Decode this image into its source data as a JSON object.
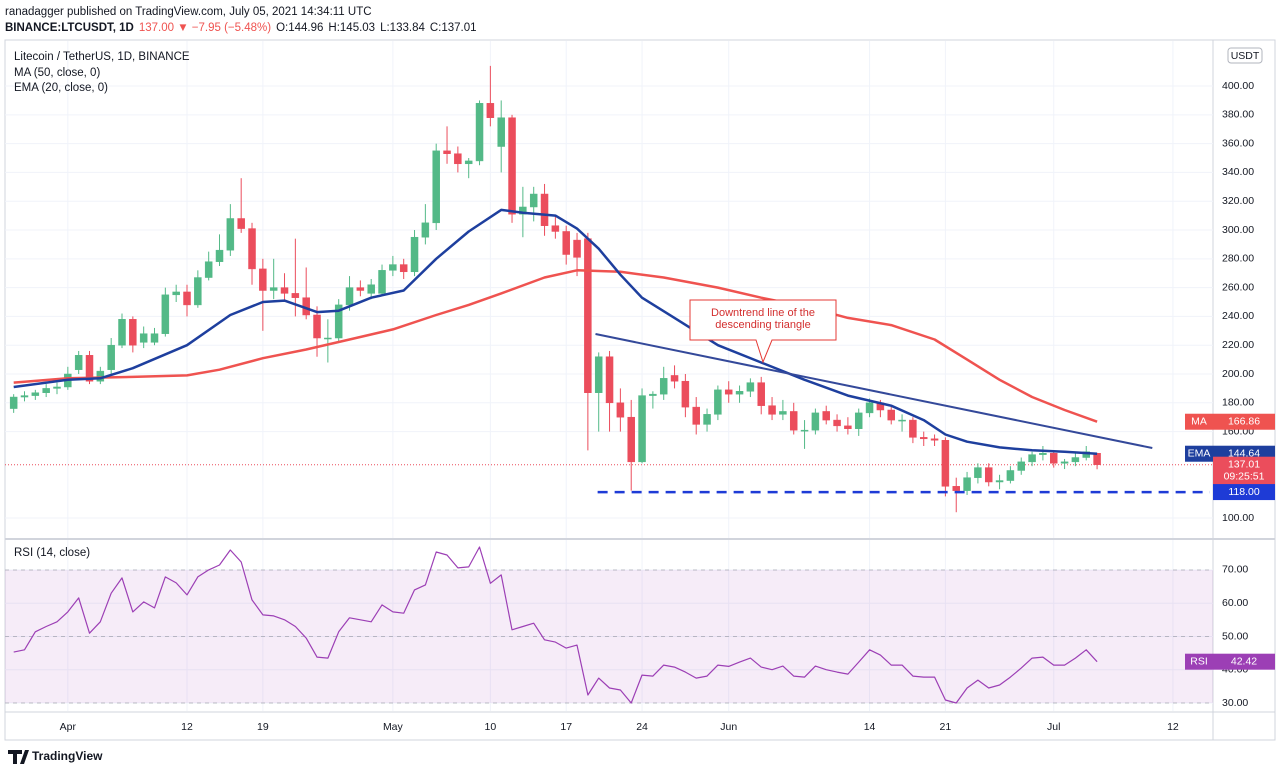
{
  "header": {
    "line1": "ranadagger published on TradingView.com, July 05, 2021 14:34:11 UTC",
    "symbol": "BINANCE:LTCUSDT, 1D",
    "change": "137.00 ▼ −7.95 (−5.48%)",
    "ohlc": [
      "O:144.96",
      "H:145.03",
      "L:133.84",
      "C:137.01"
    ]
  },
  "chart_data": [
    {
      "type": "candlestick",
      "title": "Litecoin / TetherUS, 1D, BINANCE",
      "currency": "USDT",
      "x": [
        -5,
        -4,
        -3,
        -2,
        -1,
        0,
        1,
        2,
        3,
        4,
        5,
        6,
        7,
        8,
        9,
        10,
        11,
        12,
        13,
        14,
        15,
        16,
        17,
        18,
        19,
        20,
        21,
        22,
        23,
        24,
        25,
        26,
        27,
        28,
        29,
        30,
        31,
        32,
        33,
        34,
        35,
        36,
        37,
        38,
        39,
        40,
        41,
        42,
        43,
        44,
        45,
        46,
        47,
        48,
        49,
        50,
        51,
        52,
        53,
        54,
        55,
        56,
        57,
        58,
        59,
        60,
        61,
        62,
        63,
        64,
        65,
        66,
        67,
        68,
        69,
        70,
        71,
        72,
        73,
        74,
        75,
        76,
        77,
        78,
        79,
        80,
        81,
        82,
        83,
        84,
        85,
        86,
        87,
        88,
        89,
        90,
        91,
        92,
        93,
        94,
        95
      ],
      "open": [
        176,
        184,
        185,
        187,
        190,
        191,
        203,
        213,
        195,
        203,
        220,
        238,
        222,
        222,
        228,
        255,
        257,
        248,
        267,
        278,
        286,
        308,
        301,
        273,
        258,
        260,
        256,
        253,
        241,
        225,
        225,
        248,
        260,
        256,
        256,
        272,
        276,
        271,
        295,
        305,
        355,
        353,
        346,
        348,
        388,
        358,
        378,
        311,
        316,
        325,
        303,
        299,
        293,
        294,
        187,
        212,
        180,
        170,
        139,
        185,
        186,
        199,
        195,
        177,
        165,
        172,
        189,
        186,
        188,
        194,
        178,
        172,
        174,
        161,
        161,
        174,
        168,
        164,
        162,
        173,
        180,
        175,
        168,
        168,
        156,
        155,
        154,
        122,
        119,
        128,
        135,
        125,
        126,
        133,
        139,
        144,
        145,
        138,
        139,
        142,
        144.96
      ],
      "high": [
        186,
        188,
        189,
        193,
        194,
        205,
        216,
        216,
        205,
        225,
        242,
        240,
        233,
        232,
        260,
        262,
        262,
        272,
        285,
        297,
        318,
        336,
        305,
        280,
        280,
        270,
        294,
        274,
        247,
        238,
        252,
        268,
        265,
        266,
        276,
        282,
        280,
        300,
        318,
        360,
        372,
        358,
        350,
        390,
        414,
        390,
        380,
        330,
        330,
        332,
        310,
        303,
        298,
        298,
        215,
        216,
        190,
        182,
        190,
        188,
        205,
        206,
        200,
        184,
        176,
        192,
        195,
        192,
        197,
        198,
        184,
        182,
        180,
        168,
        176,
        178,
        172,
        170,
        176,
        183,
        182,
        178,
        172,
        170,
        160,
        158,
        156,
        128,
        132,
        138,
        138,
        130,
        136,
        142,
        146,
        150,
        147,
        141,
        145,
        150,
        145.03
      ],
      "low": [
        173,
        181,
        182,
        184,
        186,
        189,
        200,
        193,
        193,
        200,
        218,
        215,
        218,
        220,
        226,
        250,
        240,
        246,
        265,
        275,
        282,
        298,
        262,
        230,
        252,
        250,
        240,
        238,
        212,
        208,
        222,
        244,
        254,
        252,
        254,
        268,
        266,
        268,
        290,
        300,
        346,
        340,
        336,
        345,
        372,
        340,
        305,
        295,
        306,
        296,
        294,
        276,
        268,
        147,
        160,
        160,
        160,
        119,
        138,
        176,
        182,
        190,
        170,
        158,
        160,
        168,
        180,
        180,
        184,
        172,
        168,
        168,
        158,
        148,
        158,
        165,
        160,
        158,
        157,
        170,
        170,
        165,
        160,
        152,
        150,
        150,
        115,
        104,
        116,
        124,
        122,
        120,
        124,
        130,
        136,
        140,
        135,
        134,
        136,
        140,
        133.84
      ],
      "close": [
        184,
        185,
        187,
        190,
        191,
        200,
        213,
        195,
        202,
        220,
        238,
        220,
        228,
        228,
        255,
        257,
        248,
        267,
        278,
        286,
        308,
        301,
        273,
        258,
        260,
        256,
        253,
        241,
        225,
        225,
        248,
        260,
        258,
        262,
        272,
        276,
        271,
        295,
        305,
        355,
        353,
        346,
        348,
        388,
        378,
        378,
        311,
        316,
        325,
        303,
        299,
        283,
        281,
        187,
        212,
        180,
        170,
        139,
        185,
        186,
        197,
        195,
        177,
        165,
        172,
        189,
        186,
        188,
        194,
        178,
        172,
        174,
        161,
        161,
        173,
        168,
        164,
        162,
        173,
        180,
        175,
        168,
        168,
        156,
        155,
        154,
        122,
        119,
        128,
        135,
        125,
        126,
        133,
        139,
        144,
        145,
        138,
        139,
        142,
        146,
        137.01
      ],
      "colors": {
        "up": "#53b987",
        "down": "#eb4d5c"
      },
      "countdown": "09:25:51",
      "series": [
        {
          "name": "MA (50, close, 0)",
          "tag": "MA",
          "color": "#ef5350",
          "x": [
            -5,
            0,
            6,
            11,
            14,
            18,
            22,
            26,
            30,
            34,
            37,
            40,
            44,
            47,
            51,
            55,
            60,
            64,
            68,
            72,
            76,
            80,
            83,
            86,
            89,
            92,
            95
          ],
          "values": [
            194,
            197,
            198,
            199,
            203,
            211,
            217,
            224,
            231,
            241,
            248,
            256,
            267,
            272,
            271,
            267,
            260,
            253,
            247,
            239,
            234,
            224,
            210,
            196,
            184,
            175,
            166.86
          ]
        },
        {
          "name": "EMA (20, close, 0)",
          "tag": "EMA",
          "color": "#1e3f9e",
          "x": [
            -5,
            0,
            3,
            6,
            11,
            15,
            18,
            20,
            23,
            25,
            28,
            31,
            34,
            37,
            40,
            42,
            45,
            47,
            49,
            51,
            53,
            56,
            60,
            64,
            68,
            72,
            76,
            79,
            81,
            83,
            86,
            89,
            92,
            95
          ],
          "values": [
            191,
            196,
            197,
            204,
            220,
            241,
            250,
            251,
            243,
            244,
            253,
            258,
            280,
            299,
            314,
            312,
            310,
            301,
            287,
            269,
            253,
            239,
            220,
            208,
            196,
            185,
            178,
            168,
            158,
            153,
            149,
            147,
            146,
            144.64
          ]
        }
      ],
      "trendline": {
        "x": [
          48.7,
          100.1
        ],
        "values": [
          227.8,
          148.6
        ],
        "color": "#34499a"
      },
      "support": {
        "value": 118,
        "value_label": "118.00",
        "x": [
          48.9,
          105.4
        ],
        "color": "#1e3bd6"
      },
      "annotation": {
        "text": [
          "Downtrend line of the",
          "descending triangle"
        ],
        "color": "#d32f2f"
      },
      "xlim": [
        -5.8,
        105.7
      ],
      "ylim": [
        86.8,
        428.5
      ],
      "yticks": [
        {
          "value": 100,
          "label": "100.00"
        },
        {
          "value": 160,
          "label": "160.00"
        },
        {
          "value": 180,
          "label": "180.00"
        },
        {
          "value": 200,
          "label": "200.00"
        },
        {
          "value": 220,
          "label": "220.00"
        },
        {
          "value": 240,
          "label": "240.00"
        },
        {
          "value": 260,
          "label": "260.00"
        },
        {
          "value": 280,
          "label": "280.00"
        },
        {
          "value": 300,
          "label": "300.00"
        },
        {
          "value": 320,
          "label": "320.00"
        },
        {
          "value": 340,
          "label": "340.00"
        },
        {
          "value": 360,
          "label": "360.00"
        },
        {
          "value": 380,
          "label": "380.00"
        },
        {
          "value": 400,
          "label": "400.00"
        }
      ],
      "grid": true
    },
    {
      "type": "line",
      "title": "RSI (14, close)",
      "x": [
        -5,
        -4,
        -3,
        -2,
        -1,
        0,
        1,
        2,
        3,
        4,
        5,
        6,
        7,
        8,
        9,
        10,
        11,
        12,
        13,
        14,
        15,
        16,
        17,
        18,
        19,
        20,
        21,
        22,
        23,
        24,
        25,
        26,
        27,
        28,
        29,
        30,
        31,
        32,
        33,
        34,
        35,
        36,
        37,
        38,
        39,
        40,
        41,
        42,
        43,
        44,
        45,
        46,
        47,
        48,
        49,
        50,
        51,
        52,
        53,
        54,
        55,
        56,
        57,
        58,
        59,
        60,
        61,
        62,
        63,
        64,
        65,
        66,
        67,
        68,
        69,
        70,
        71,
        72,
        73,
        74,
        75,
        76,
        77,
        78,
        79,
        80,
        81,
        82,
        83,
        84,
        85,
        86,
        87,
        88,
        89,
        90,
        91,
        92,
        93,
        94,
        95
      ],
      "series": [
        {
          "name": "RSI",
          "color": "#9c3fb5",
          "values": [
            45.3,
            46,
            51.4,
            53,
            54.4,
            57.4,
            61.6,
            51,
            54.4,
            63,
            67.6,
            57.4,
            60.4,
            58.6,
            67.9,
            66.1,
            62.5,
            67.9,
            70,
            71.5,
            76,
            72.4,
            61,
            56.5,
            56.2,
            55,
            53,
            49.5,
            43.8,
            43.5,
            51.4,
            55.6,
            55,
            54.4,
            59.5,
            57.4,
            57,
            64,
            65.5,
            75.4,
            74.5,
            70.6,
            70.9,
            76.9,
            66,
            68.5,
            52,
            53,
            54,
            49,
            48.3,
            46.5,
            47.4,
            32.4,
            37.5,
            34.5,
            33.9,
            30,
            38.4,
            38.1,
            41.4,
            40.8,
            39.3,
            37.5,
            38.1,
            41.4,
            41,
            42.3,
            43.5,
            40.8,
            40,
            41.1,
            38.1,
            37.8,
            41.1,
            40,
            39.3,
            38.7,
            42.3,
            46,
            44.4,
            41.4,
            41.4,
            38.1,
            37.8,
            37.8,
            30.9,
            30,
            34.5,
            36.9,
            34.5,
            35.4,
            37.8,
            40.5,
            43.5,
            43.8,
            41.4,
            41.4,
            43.5,
            46,
            42.42
          ]
        }
      ],
      "band": [
        30,
        70
      ],
      "midline": 50,
      "xlim": [
        -5.8,
        105.7
      ],
      "ylim": [
        27.9,
        78.7
      ],
      "yticks": [
        {
          "value": 30,
          "label": "30.00"
        },
        {
          "value": 40,
          "label": "40.00"
        },
        {
          "value": 50,
          "label": "50.00"
        },
        {
          "value": 60,
          "label": "60.00"
        },
        {
          "value": 70,
          "label": "70.00"
        }
      ],
      "xticks": [
        {
          "value": 0,
          "label": "Apr"
        },
        {
          "value": 11,
          "label": "12"
        },
        {
          "value": 18,
          "label": "19"
        },
        {
          "value": 30,
          "label": "May"
        },
        {
          "value": 39,
          "label": "10"
        },
        {
          "value": 46,
          "label": "17"
        },
        {
          "value": 53,
          "label": "24"
        },
        {
          "value": 61,
          "label": "Jun"
        },
        {
          "value": 74,
          "label": "14"
        },
        {
          "value": 81,
          "label": "21"
        },
        {
          "value": 91,
          "label": "Jul"
        },
        {
          "value": 102,
          "label": "12"
        }
      ],
      "grid": true
    }
  ],
  "footer": {
    "brand": "TradingView"
  }
}
